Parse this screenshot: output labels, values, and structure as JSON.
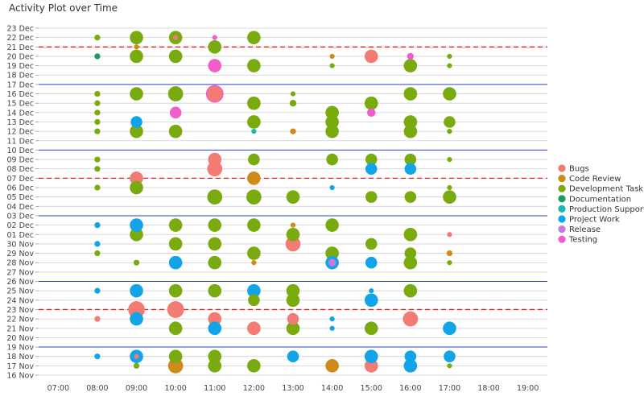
{
  "chart_data": {
    "type": "scatter",
    "title": "Activity Plot over Time",
    "xlabel": "",
    "ylabel": "",
    "x_ticks": [
      "07:00",
      "08:00",
      "09:00",
      "10:00",
      "11:00",
      "12:00",
      "13:00",
      "14:00",
      "15:00",
      "16:00",
      "17:00",
      "18:00",
      "19:00"
    ],
    "x_range": [
      6.5,
      19.5
    ],
    "y_ticks": [
      "16 Nov",
      "17 Nov",
      "18 Nov",
      "19 Nov",
      "20 Nov",
      "21 Nov",
      "22 Nov",
      "23 Nov",
      "24 Nov",
      "25 Nov",
      "26 Nov",
      "27 Nov",
      "28 Nov",
      "29 Nov",
      "30 Nov",
      "01 Dec",
      "02 Dec",
      "03 Dec",
      "04 Dec",
      "05 Dec",
      "06 Dec",
      "07 Dec",
      "08 Dec",
      "09 Dec",
      "10 Dec",
      "11 Dec",
      "12 Dec",
      "13 Dec",
      "14 Dec",
      "15 Dec",
      "16 Dec",
      "17 Dec",
      "18 Dec",
      "19 Dec",
      "20 Dec",
      "21 Dec",
      "22 Dec",
      "23 Dec"
    ],
    "week_start_days": [
      "19 Nov",
      "26 Nov",
      "03 Dec",
      "10 Dec",
      "17 Dec"
    ],
    "highlight_days": [
      "23 Nov",
      "07 Dec",
      "21 Dec"
    ],
    "legend_position": "right",
    "series": [
      {
        "name": "Bugs",
        "color": "#f27b73",
        "points": [
          {
            "x": 9,
            "d": "23 Nov",
            "s": 2
          },
          {
            "x": 10,
            "d": "23 Nov",
            "s": 2
          },
          {
            "x": 11,
            "d": "22 Nov",
            "s": 1.6
          },
          {
            "x": 12,
            "d": "21 Nov",
            "s": 1.6
          },
          {
            "x": 13,
            "d": "22 Nov",
            "s": 1.4
          },
          {
            "x": 15,
            "d": "17 Nov",
            "s": 1.6
          },
          {
            "x": 16,
            "d": "22 Nov",
            "s": 1.8
          },
          {
            "x": 13,
            "d": "30 Nov",
            "s": 1.8
          },
          {
            "x": 11,
            "d": "08 Dec",
            "s": 1.8
          },
          {
            "x": 11,
            "d": "09 Dec",
            "s": 1.6
          },
          {
            "x": 9,
            "d": "07 Dec",
            "s": 1.6
          },
          {
            "x": 11,
            "d": "16 Dec",
            "s": 1.8
          },
          {
            "x": 15,
            "d": "20 Dec",
            "s": 1.6
          },
          {
            "x": 8,
            "d": "22 Nov",
            "s": 0.7
          },
          {
            "x": 17,
            "d": "01 Dec",
            "s": 0.6
          },
          {
            "x": 9,
            "d": "18 Nov",
            "s": 0.6
          },
          {
            "x": 10,
            "d": "22 Dec",
            "s": 0.6
          }
        ]
      },
      {
        "name": "Code Review",
        "color": "#d08a1a",
        "points": [
          {
            "x": 10,
            "d": "17 Nov",
            "s": 1.8
          },
          {
            "x": 14,
            "d": "17 Nov",
            "s": 1.6
          },
          {
            "x": 12,
            "d": "07 Dec",
            "s": 1.6
          },
          {
            "x": 13,
            "d": "12 Dec",
            "s": 0.7
          },
          {
            "x": 14,
            "d": "20 Dec",
            "s": 0.6
          },
          {
            "x": 17,
            "d": "29 Nov",
            "s": 0.7
          },
          {
            "x": 12,
            "d": "28 Nov",
            "s": 0.6
          },
          {
            "x": 9,
            "d": "21 Dec",
            "s": 0.6
          },
          {
            "x": 13,
            "d": "02 Dec",
            "s": 0.6
          }
        ]
      },
      {
        "name": "Development Task",
        "color": "#7aab0e",
        "points": [
          {
            "x": 9,
            "d": "22 Dec",
            "s": 1.6
          },
          {
            "x": 10,
            "d": "22 Dec",
            "s": 1.6
          },
          {
            "x": 11,
            "d": "21 Dec",
            "s": 1.6
          },
          {
            "x": 12,
            "d": "22 Dec",
            "s": 1.6
          },
          {
            "x": 9,
            "d": "20 Dec",
            "s": 1.6
          },
          {
            "x": 10,
            "d": "20 Dec",
            "s": 1.6
          },
          {
            "x": 12,
            "d": "19 Dec",
            "s": 1.6
          },
          {
            "x": 16,
            "d": "19 Dec",
            "s": 1.6
          },
          {
            "x": 9,
            "d": "16 Dec",
            "s": 1.6
          },
          {
            "x": 10,
            "d": "16 Dec",
            "s": 1.8
          },
          {
            "x": 16,
            "d": "16 Dec",
            "s": 1.6
          },
          {
            "x": 17,
            "d": "16 Dec",
            "s": 1.6
          },
          {
            "x": 12,
            "d": "15 Dec",
            "s": 1.6
          },
          {
            "x": 14,
            "d": "14 Dec",
            "s": 1.6
          },
          {
            "x": 15,
            "d": "15 Dec",
            "s": 1.6
          },
          {
            "x": 12,
            "d": "13 Dec",
            "s": 1.6
          },
          {
            "x": 14,
            "d": "13 Dec",
            "s": 1.6
          },
          {
            "x": 16,
            "d": "13 Dec",
            "s": 1.6
          },
          {
            "x": 17,
            "d": "13 Dec",
            "s": 1.4
          },
          {
            "x": 9,
            "d": "12 Dec",
            "s": 1.6
          },
          {
            "x": 10,
            "d": "12 Dec",
            "s": 1.6
          },
          {
            "x": 14,
            "d": "12 Dec",
            "s": 1.6
          },
          {
            "x": 16,
            "d": "12 Dec",
            "s": 1.6
          },
          {
            "x": 12,
            "d": "09 Dec",
            "s": 1.4
          },
          {
            "x": 14,
            "d": "09 Dec",
            "s": 1.4
          },
          {
            "x": 15,
            "d": "09 Dec",
            "s": 1.4
          },
          {
            "x": 16,
            "d": "09 Dec",
            "s": 1.4
          },
          {
            "x": 9,
            "d": "06 Dec",
            "s": 1.6
          },
          {
            "x": 11,
            "d": "05 Dec",
            "s": 1.8
          },
          {
            "x": 12,
            "d": "05 Dec",
            "s": 1.8
          },
          {
            "x": 13,
            "d": "05 Dec",
            "s": 1.6
          },
          {
            "x": 15,
            "d": "05 Dec",
            "s": 1.4
          },
          {
            "x": 16,
            "d": "05 Dec",
            "s": 1.4
          },
          {
            "x": 17,
            "d": "05 Dec",
            "s": 1.6
          },
          {
            "x": 10,
            "d": "02 Dec",
            "s": 1.6
          },
          {
            "x": 11,
            "d": "02 Dec",
            "s": 1.6
          },
          {
            "x": 12,
            "d": "02 Dec",
            "s": 1.6
          },
          {
            "x": 14,
            "d": "02 Dec",
            "s": 1.6
          },
          {
            "x": 9,
            "d": "01 Dec",
            "s": 1.6
          },
          {
            "x": 13,
            "d": "01 Dec",
            "s": 1.6
          },
          {
            "x": 16,
            "d": "01 Dec",
            "s": 1.6
          },
          {
            "x": 10,
            "d": "30 Nov",
            "s": 1.6
          },
          {
            "x": 11,
            "d": "30 Nov",
            "s": 1.6
          },
          {
            "x": 15,
            "d": "30 Nov",
            "s": 1.4
          },
          {
            "x": 12,
            "d": "29 Nov",
            "s": 1.6
          },
          {
            "x": 14,
            "d": "29 Nov",
            "s": 1.6
          },
          {
            "x": 16,
            "d": "29 Nov",
            "s": 1.4
          },
          {
            "x": 11,
            "d": "28 Nov",
            "s": 1.6
          },
          {
            "x": 16,
            "d": "28 Nov",
            "s": 1.6
          },
          {
            "x": 10,
            "d": "25 Nov",
            "s": 1.6
          },
          {
            "x": 11,
            "d": "25 Nov",
            "s": 1.6
          },
          {
            "x": 13,
            "d": "25 Nov",
            "s": 1.6
          },
          {
            "x": 16,
            "d": "25 Nov",
            "s": 1.6
          },
          {
            "x": 12,
            "d": "24 Nov",
            "s": 1.4
          },
          {
            "x": 13,
            "d": "24 Nov",
            "s": 1.6
          },
          {
            "x": 10,
            "d": "21 Nov",
            "s": 1.6
          },
          {
            "x": 13,
            "d": "21 Nov",
            "s": 1.6
          },
          {
            "x": 15,
            "d": "21 Nov",
            "s": 1.6
          },
          {
            "x": 10,
            "d": "18 Nov",
            "s": 1.6
          },
          {
            "x": 11,
            "d": "18 Nov",
            "s": 1.6
          },
          {
            "x": 11,
            "d": "17 Nov",
            "s": 1.6
          },
          {
            "x": 12,
            "d": "17 Nov",
            "s": 1.6
          },
          {
            "x": 8,
            "d": "22 Dec",
            "s": 0.7
          },
          {
            "x": 14,
            "d": "19 Dec",
            "s": 0.6
          },
          {
            "x": 17,
            "d": "19 Dec",
            "s": 0.6
          },
          {
            "x": 17,
            "d": "20 Dec",
            "s": 0.6
          },
          {
            "x": 8,
            "d": "16 Dec",
            "s": 0.7
          },
          {
            "x": 8,
            "d": "15 Dec",
            "s": 0.7
          },
          {
            "x": 8,
            "d": "14 Dec",
            "s": 0.7
          },
          {
            "x": 8,
            "d": "13 Dec",
            "s": 0.7
          },
          {
            "x": 8,
            "d": "12 Dec",
            "s": 0.7
          },
          {
            "x": 17,
            "d": "12 Dec",
            "s": 0.6
          },
          {
            "x": 8,
            "d": "09 Dec",
            "s": 0.7
          },
          {
            "x": 8,
            "d": "08 Dec",
            "s": 0.7
          },
          {
            "x": 8,
            "d": "06 Dec",
            "s": 0.7
          },
          {
            "x": 17,
            "d": "09 Dec",
            "s": 0.6
          },
          {
            "x": 17,
            "d": "06 Dec",
            "s": 0.6
          },
          {
            "x": 8,
            "d": "29 Nov",
            "s": 0.7
          },
          {
            "x": 9,
            "d": "28 Nov",
            "s": 0.7
          },
          {
            "x": 17,
            "d": "28 Nov",
            "s": 0.6
          },
          {
            "x": 9,
            "d": "17 Nov",
            "s": 0.7
          },
          {
            "x": 17,
            "d": "17 Nov",
            "s": 0.6
          },
          {
            "x": 13,
            "d": "15 Dec",
            "s": 0.8
          },
          {
            "x": 13,
            "d": "16 Dec",
            "s": 0.6
          }
        ]
      },
      {
        "name": "Documentation",
        "color": "#1a9c62",
        "points": [
          {
            "x": 8,
            "d": "20 Dec",
            "s": 0.7
          }
        ]
      },
      {
        "name": "Production Support",
        "color": "#17b8b0",
        "points": [
          {
            "x": 12,
            "d": "12 Dec",
            "s": 0.6
          }
        ]
      },
      {
        "name": "Project Work",
        "color": "#12a4e8",
        "points": [
          {
            "x": 9,
            "d": "02 Dec",
            "s": 1.6
          },
          {
            "x": 10,
            "d": "28 Nov",
            "s": 1.6
          },
          {
            "x": 14,
            "d": "28 Nov",
            "s": 1.6
          },
          {
            "x": 15,
            "d": "28 Nov",
            "s": 1.4
          },
          {
            "x": 9,
            "d": "25 Nov",
            "s": 1.6
          },
          {
            "x": 12,
            "d": "25 Nov",
            "s": 1.6
          },
          {
            "x": 15,
            "d": "24 Nov",
            "s": 1.6
          },
          {
            "x": 9,
            "d": "22 Nov",
            "s": 1.6
          },
          {
            "x": 11,
            "d": "21 Nov",
            "s": 1.6
          },
          {
            "x": 17,
            "d": "21 Nov",
            "s": 1.6
          },
          {
            "x": 9,
            "d": "18 Nov",
            "s": 1.6
          },
          {
            "x": 13,
            "d": "18 Nov",
            "s": 1.4
          },
          {
            "x": 15,
            "d": "18 Nov",
            "s": 1.6
          },
          {
            "x": 16,
            "d": "18 Nov",
            "s": 1.4
          },
          {
            "x": 17,
            "d": "18 Nov",
            "s": 1.4
          },
          {
            "x": 16,
            "d": "17 Nov",
            "s": 1.6
          },
          {
            "x": 15,
            "d": "08 Dec",
            "s": 1.4
          },
          {
            "x": 16,
            "d": "08 Dec",
            "s": 1.4
          },
          {
            "x": 9,
            "d": "13 Dec",
            "s": 1.4
          },
          {
            "x": 8,
            "d": "18 Nov",
            "s": 0.7
          },
          {
            "x": 8,
            "d": "25 Nov",
            "s": 0.7
          },
          {
            "x": 8,
            "d": "30 Nov",
            "s": 0.7
          },
          {
            "x": 8,
            "d": "02 Dec",
            "s": 0.7
          },
          {
            "x": 14,
            "d": "22 Nov",
            "s": 0.6
          },
          {
            "x": 14,
            "d": "21 Nov",
            "s": 0.6
          },
          {
            "x": 14,
            "d": "06 Dec",
            "s": 0.6
          },
          {
            "x": 15,
            "d": "25 Nov",
            "s": 0.6
          }
        ]
      },
      {
        "name": "Release",
        "color": "#c27bdb",
        "points": [
          {
            "x": 14,
            "d": "28 Nov",
            "s": 0.9
          }
        ]
      },
      {
        "name": "Testing",
        "color": "#f25ccb",
        "points": [
          {
            "x": 11,
            "d": "19 Dec",
            "s": 1.6
          },
          {
            "x": 11,
            "d": "16 Dec",
            "s": 2.1
          },
          {
            "x": 10,
            "d": "14 Dec",
            "s": 1.4
          },
          {
            "x": 15,
            "d": "14 Dec",
            "s": 1.0
          },
          {
            "x": 16,
            "d": "20 Dec",
            "s": 0.8
          },
          {
            "x": 11,
            "d": "22 Dec",
            "s": 0.6
          }
        ]
      }
    ]
  }
}
